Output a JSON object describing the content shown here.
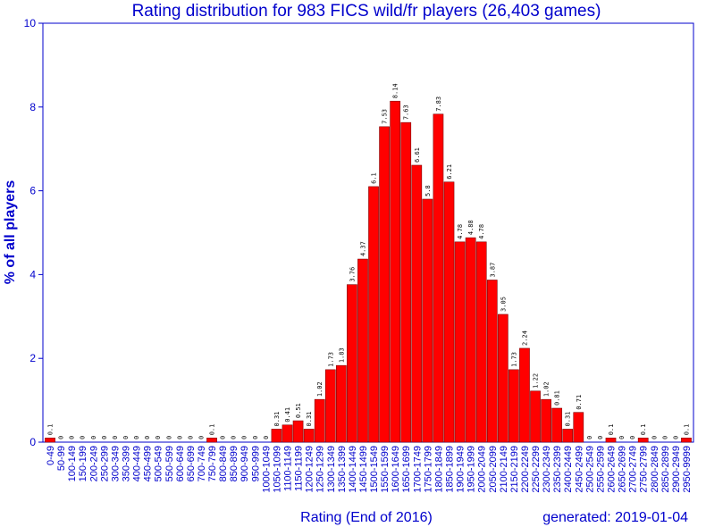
{
  "chart_data": {
    "type": "bar",
    "title": "Rating distribution for 983 FICS wild/fr players (26,403 games)",
    "xlabel": "Rating (End of 2016)",
    "ylabel": "% of all players",
    "footer": "generated: 2019-01-04",
    "ylim": [
      0,
      10
    ],
    "yticks": [
      0,
      2,
      4,
      6,
      8,
      10
    ],
    "grid": false,
    "bar_color": "#ff0000",
    "axis_color": "#0000cc",
    "categories": [
      "0-49",
      "50-99",
      "100-149",
      "150-199",
      "200-249",
      "250-299",
      "300-349",
      "350-399",
      "400-449",
      "450-499",
      "500-549",
      "550-599",
      "600-649",
      "650-699",
      "700-749",
      "750-799",
      "800-849",
      "850-899",
      "900-949",
      "950-999",
      "1000-1049",
      "1050-1099",
      "1100-1149",
      "1150-1199",
      "1200-1249",
      "1250-1299",
      "1300-1349",
      "1350-1399",
      "1400-1449",
      "1450-1499",
      "1500-1549",
      "1550-1599",
      "1600-1649",
      "1650-1699",
      "1700-1749",
      "1750-1799",
      "1800-1849",
      "1850-1899",
      "1900-1949",
      "1950-1999",
      "2000-2049",
      "2050-2099",
      "2100-2149",
      "2150-2199",
      "2200-2249",
      "2250-2299",
      "2300-2349",
      "2350-2399",
      "2400-2449",
      "2450-2499",
      "2500-2549",
      "2550-2599",
      "2600-2649",
      "2650-2699",
      "2700-2749",
      "2750-2799",
      "2800-2849",
      "2850-2899",
      "2900-2949",
      "2950-9999"
    ],
    "values": [
      0.1,
      0,
      0,
      0,
      0,
      0,
      0,
      0,
      0,
      0,
      0,
      0,
      0,
      0,
      0,
      0.1,
      0,
      0,
      0,
      0,
      0,
      0.31,
      0.41,
      0.51,
      0.31,
      1.02,
      1.73,
      1.83,
      3.76,
      4.37,
      6.1,
      7.53,
      8.14,
      7.63,
      6.61,
      5.8,
      7.83,
      6.21,
      4.78,
      4.88,
      4.78,
      3.87,
      3.05,
      1.73,
      2.24,
      1.22,
      1.02,
      0.81,
      0.31,
      0.71,
      0,
      0,
      0.1,
      0,
      0,
      0.1,
      0,
      0,
      0,
      0.1
    ],
    "data_labels": [
      "0.1",
      "0",
      "0",
      "0",
      "0",
      "0",
      "0",
      "0",
      "0",
      "0",
      "0",
      "0",
      "0",
      "0",
      "0",
      "0.1",
      "0",
      "0",
      "0",
      "0",
      "0",
      "0.31",
      "0.41",
      "0.51",
      "0.31",
      "1.02",
      "1.73",
      "1.83",
      "3.76",
      "4.37",
      "6.1",
      "7.53",
      "8.14",
      "7.63",
      "6.61",
      "5.8",
      "7.83",
      "6.21",
      "4.78",
      "4.88",
      "4.78",
      "3.87",
      "3.05",
      "1.73",
      "2.24",
      "1.22",
      "1.02",
      "0.81",
      "0.31",
      "0.71",
      "0",
      "0",
      "0.1",
      "0",
      "0",
      "0.1",
      "0",
      "0",
      "0",
      "0.1"
    ]
  }
}
